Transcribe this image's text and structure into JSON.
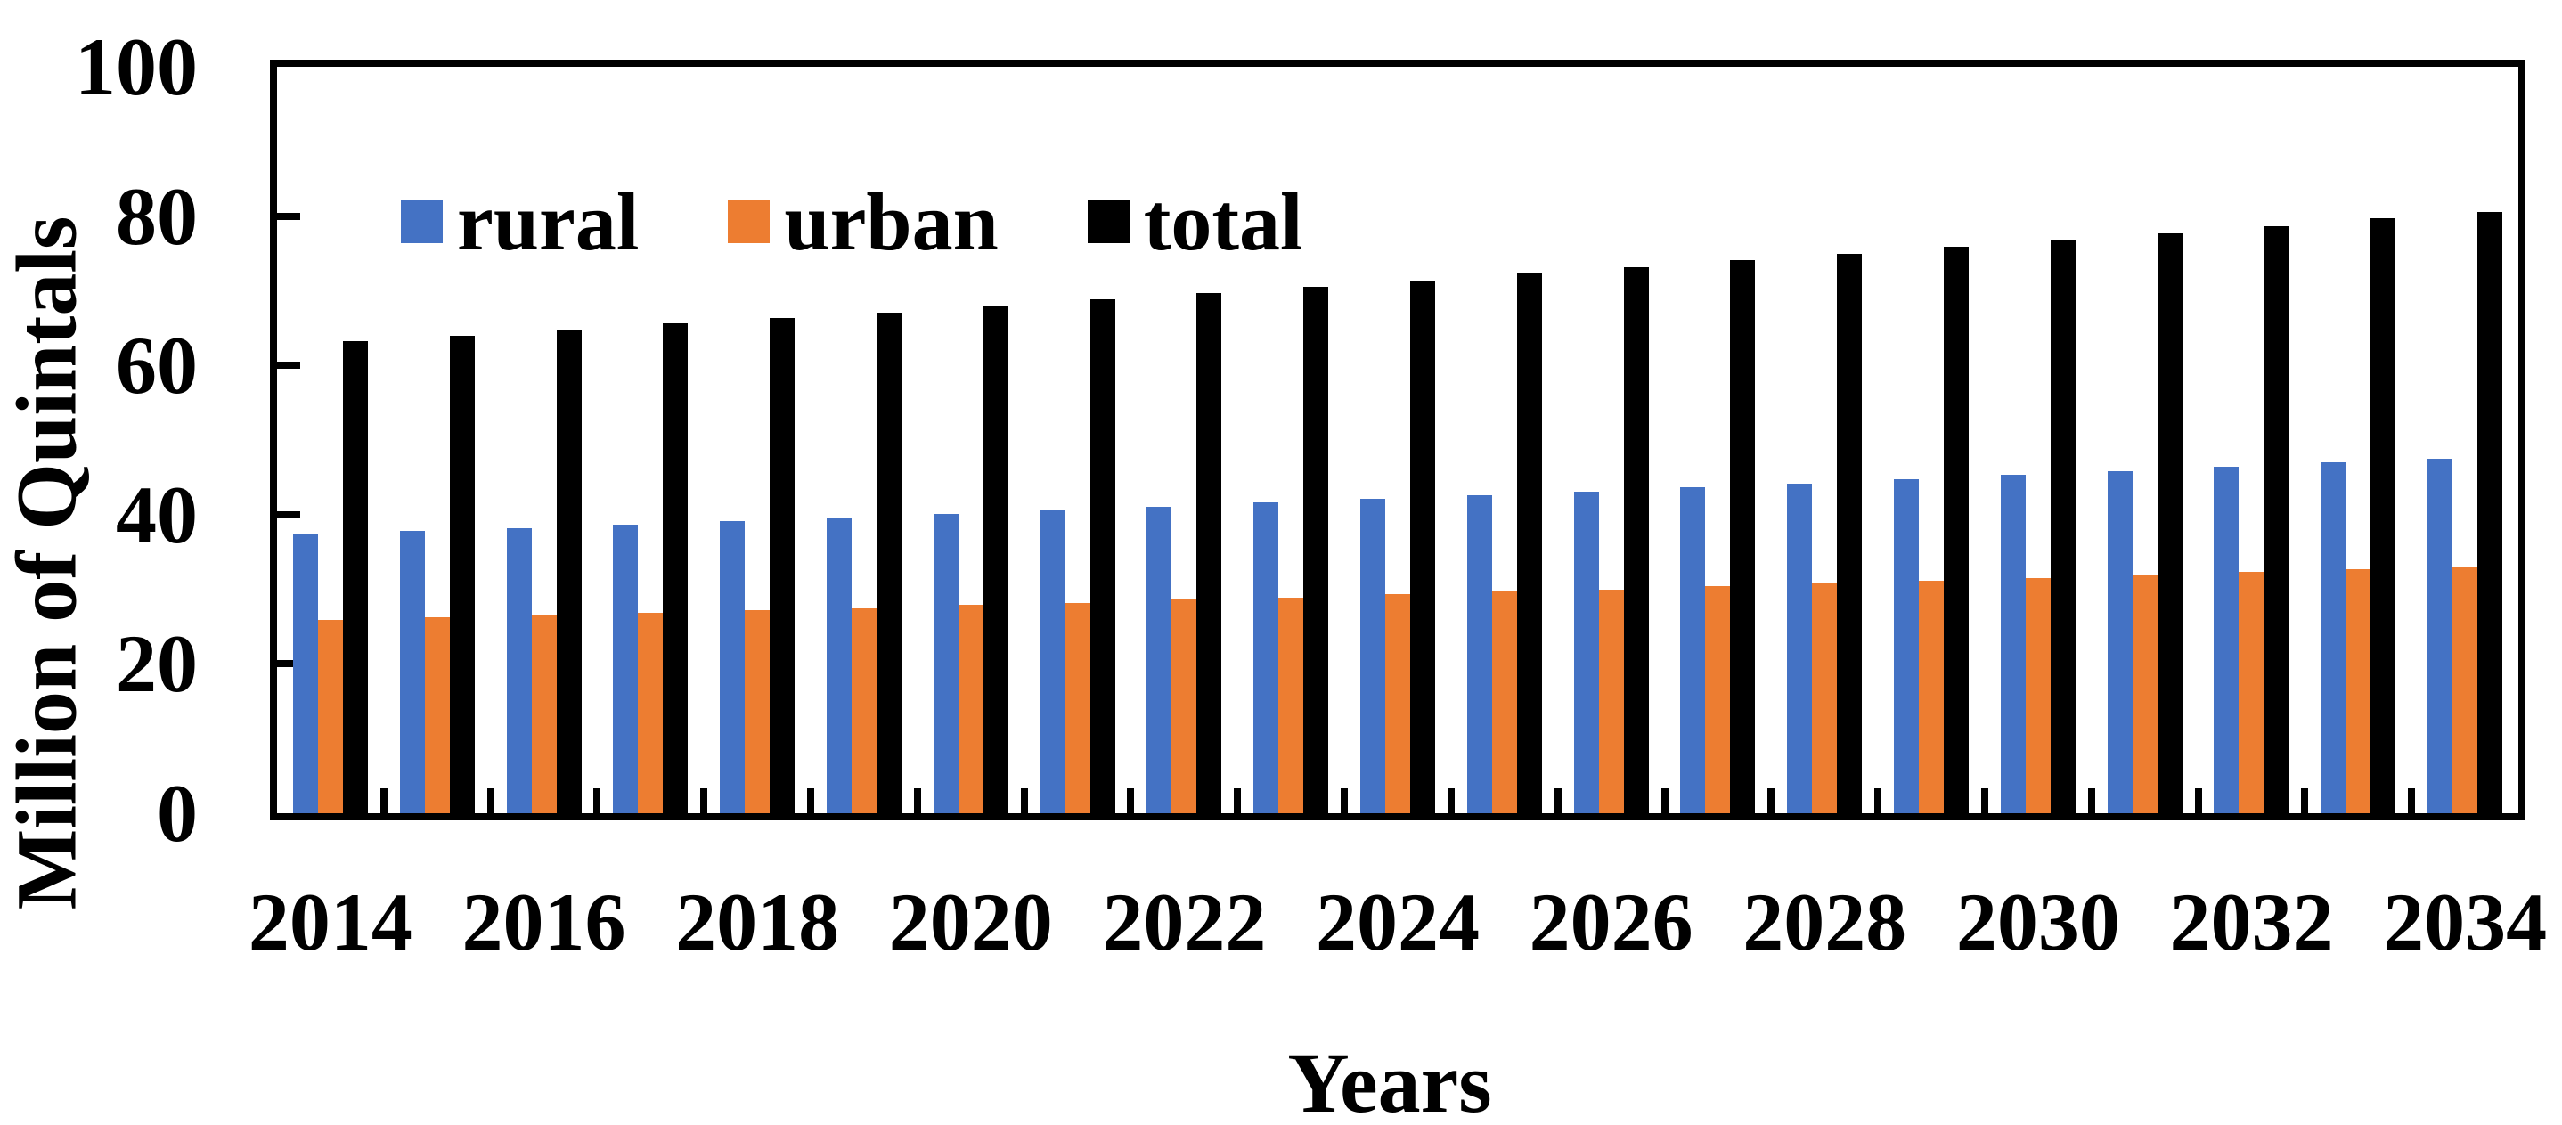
{
  "chart_data": {
    "type": "bar",
    "title": "",
    "xlabel": "Years",
    "ylabel": "Million of Quintals",
    "categories": [
      2014,
      2015,
      2016,
      2017,
      2018,
      2019,
      2020,
      2021,
      2022,
      2023,
      2024,
      2025,
      2026,
      2027,
      2028,
      2029,
      2030,
      2031,
      2032,
      2033,
      2034
    ],
    "series": [
      {
        "name": "rural",
        "color": "#4472C4",
        "values": [
          37.3,
          37.8,
          38.2,
          38.7,
          39.2,
          39.6,
          40.1,
          40.6,
          41.1,
          41.6,
          42.1,
          42.6,
          43.1,
          43.7,
          44.2,
          44.7,
          45.3,
          45.8,
          46.4,
          47.0,
          47.5
        ]
      },
      {
        "name": "urban",
        "color": "#ED7D31",
        "values": [
          25.9,
          26.2,
          26.5,
          26.9,
          27.2,
          27.5,
          27.9,
          28.2,
          28.6,
          28.9,
          29.3,
          29.7,
          30.0,
          30.4,
          30.8,
          31.2,
          31.5,
          31.9,
          32.3,
          32.7,
          33.1
        ]
      },
      {
        "name": "total",
        "color": "#000000",
        "values": [
          63.2,
          64.0,
          64.7,
          65.6,
          66.4,
          67.1,
          68.0,
          68.8,
          69.7,
          70.5,
          71.4,
          72.3,
          73.1,
          74.1,
          75.0,
          75.9,
          76.8,
          77.7,
          78.7,
          79.7,
          80.6
        ]
      }
    ],
    "ylim": [
      0,
      100
    ],
    "yticks": [
      0,
      20,
      40,
      60,
      80,
      100
    ],
    "x_axis_labels": [
      "2014",
      "2016",
      "2018",
      "2020",
      "2022",
      "2024",
      "2026",
      "2028",
      "2030",
      "2032",
      "2034"
    ],
    "x_label_every": 2,
    "grid": false,
    "legend_position": "top-left-inside",
    "axis_color": "#000000",
    "background_color": "#FFFFFF"
  }
}
